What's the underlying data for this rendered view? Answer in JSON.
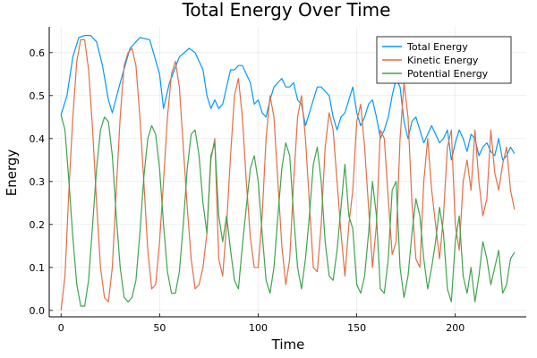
{
  "chart_data": {
    "type": "line",
    "title": "Total Energy Over Time",
    "xlabel": "Time",
    "ylabel": "Energy",
    "xlim": [
      -6,
      236
    ],
    "ylim": [
      -0.015,
      0.66
    ],
    "xticks": [
      0,
      50,
      100,
      150,
      200
    ],
    "yticks": [
      0.0,
      0.1,
      0.2,
      0.3,
      0.4,
      0.5,
      0.6
    ],
    "grid": true,
    "legend_position": "top-right",
    "series": [
      {
        "name": "Total Energy",
        "color": "#009AFA",
        "x": [
          0,
          3,
          6,
          9,
          12,
          15,
          18,
          21,
          24,
          26,
          30,
          35,
          40,
          45,
          50,
          52,
          55,
          60,
          65,
          68,
          70,
          72,
          74,
          76,
          78,
          80,
          82,
          84,
          86,
          88,
          90,
          92,
          94,
          96,
          98,
          100,
          102,
          104,
          106,
          108,
          110,
          112,
          114,
          116,
          118,
          120,
          122,
          124,
          126,
          128,
          130,
          132,
          134,
          136,
          138,
          140,
          142,
          144,
          146,
          148,
          150,
          152,
          154,
          156,
          158,
          160,
          162,
          164,
          166,
          168,
          170,
          172,
          174,
          176,
          178,
          180,
          182,
          184,
          186,
          188,
          190,
          192,
          194,
          196,
          198,
          200,
          202,
          204,
          206,
          208,
          210,
          212,
          214,
          216,
          218,
          220,
          222,
          224,
          226,
          228,
          230
        ],
        "values": [
          0.455,
          0.5,
          0.59,
          0.635,
          0.64,
          0.64,
          0.625,
          0.57,
          0.49,
          0.46,
          0.53,
          0.61,
          0.635,
          0.63,
          0.55,
          0.47,
          0.53,
          0.59,
          0.61,
          0.6,
          0.58,
          0.56,
          0.5,
          0.47,
          0.49,
          0.47,
          0.48,
          0.52,
          0.56,
          0.56,
          0.57,
          0.57,
          0.55,
          0.53,
          0.48,
          0.49,
          0.46,
          0.45,
          0.49,
          0.52,
          0.53,
          0.54,
          0.52,
          0.52,
          0.53,
          0.49,
          0.48,
          0.43,
          0.46,
          0.49,
          0.52,
          0.52,
          0.51,
          0.5,
          0.45,
          0.42,
          0.45,
          0.46,
          0.49,
          0.52,
          0.46,
          0.43,
          0.45,
          0.48,
          0.49,
          0.45,
          0.4,
          0.42,
          0.45,
          0.5,
          0.54,
          0.52,
          0.44,
          0.4,
          0.44,
          0.45,
          0.42,
          0.39,
          0.41,
          0.43,
          0.41,
          0.39,
          0.4,
          0.42,
          0.35,
          0.39,
          0.42,
          0.4,
          0.37,
          0.41,
          0.4,
          0.36,
          0.38,
          0.39,
          0.37,
          0.36,
          0.4,
          0.35,
          0.36,
          0.38,
          0.365
        ]
      },
      {
        "name": "Kinetic Energy",
        "color": "#E26F46",
        "x": [
          0,
          2,
          4,
          6,
          8,
          10,
          12,
          14,
          16,
          18,
          20,
          22,
          24,
          26,
          28,
          30,
          32,
          34,
          36,
          38,
          40,
          42,
          44,
          46,
          48,
          50,
          52,
          54,
          56,
          58,
          60,
          62,
          64,
          66,
          68,
          70,
          72,
          74,
          76,
          78,
          80,
          82,
          84,
          86,
          88,
          90,
          92,
          94,
          96,
          98,
          100,
          102,
          104,
          106,
          108,
          110,
          112,
          114,
          116,
          118,
          120,
          122,
          124,
          126,
          128,
          130,
          132,
          134,
          136,
          138,
          140,
          142,
          144,
          146,
          148,
          150,
          152,
          154,
          156,
          158,
          160,
          162,
          164,
          166,
          168,
          170,
          172,
          174,
          176,
          178,
          180,
          182,
          184,
          186,
          188,
          190,
          192,
          194,
          196,
          198,
          200,
          202,
          204,
          206,
          208,
          210,
          212,
          214,
          216,
          218,
          220,
          222,
          224,
          226,
          228,
          230
        ],
        "values": [
          0.0,
          0.08,
          0.28,
          0.45,
          0.58,
          0.63,
          0.63,
          0.56,
          0.42,
          0.25,
          0.1,
          0.03,
          0.02,
          0.1,
          0.28,
          0.45,
          0.57,
          0.6,
          0.61,
          0.57,
          0.45,
          0.3,
          0.14,
          0.05,
          0.06,
          0.16,
          0.3,
          0.45,
          0.55,
          0.58,
          0.52,
          0.38,
          0.24,
          0.12,
          0.05,
          0.06,
          0.1,
          0.18,
          0.35,
          0.4,
          0.12,
          0.08,
          0.2,
          0.36,
          0.5,
          0.54,
          0.45,
          0.3,
          0.17,
          0.1,
          0.1,
          0.22,
          0.4,
          0.5,
          0.45,
          0.3,
          0.15,
          0.06,
          0.12,
          0.3,
          0.45,
          0.5,
          0.4,
          0.25,
          0.1,
          0.09,
          0.2,
          0.38,
          0.46,
          0.42,
          0.3,
          0.18,
          0.08,
          0.2,
          0.28,
          0.44,
          0.48,
          0.38,
          0.24,
          0.1,
          0.2,
          0.42,
          0.4,
          0.26,
          0.13,
          0.16,
          0.4,
          0.53,
          0.45,
          0.25,
          0.12,
          0.1,
          0.3,
          0.4,
          0.28,
          0.2,
          0.12,
          0.22,
          0.38,
          0.42,
          0.2,
          0.14,
          0.3,
          0.35,
          0.28,
          0.42,
          0.3,
          0.22,
          0.26,
          0.42,
          0.32,
          0.28,
          0.34,
          0.38,
          0.28,
          0.235
        ]
      },
      {
        "name": "Potential Energy",
        "color": "#3EA44E",
        "x": [
          0,
          2,
          4,
          6,
          8,
          10,
          12,
          14,
          16,
          18,
          20,
          22,
          24,
          26,
          28,
          30,
          32,
          34,
          36,
          38,
          40,
          42,
          44,
          46,
          48,
          50,
          52,
          54,
          56,
          58,
          60,
          62,
          64,
          66,
          68,
          70,
          72,
          74,
          76,
          78,
          80,
          82,
          84,
          86,
          88,
          90,
          92,
          94,
          96,
          98,
          100,
          102,
          104,
          106,
          108,
          110,
          112,
          114,
          116,
          118,
          120,
          122,
          124,
          126,
          128,
          130,
          132,
          134,
          136,
          138,
          140,
          142,
          144,
          146,
          148,
          150,
          152,
          154,
          156,
          158,
          160,
          162,
          164,
          166,
          168,
          170,
          172,
          174,
          176,
          178,
          180,
          182,
          184,
          186,
          188,
          190,
          192,
          194,
          196,
          198,
          200,
          202,
          204,
          206,
          208,
          210,
          212,
          214,
          216,
          218,
          220,
          222,
          224,
          226,
          228,
          230
        ],
        "values": [
          0.455,
          0.42,
          0.3,
          0.17,
          0.06,
          0.01,
          0.01,
          0.07,
          0.2,
          0.33,
          0.42,
          0.45,
          0.44,
          0.36,
          0.22,
          0.1,
          0.03,
          0.02,
          0.03,
          0.07,
          0.18,
          0.31,
          0.4,
          0.43,
          0.41,
          0.33,
          0.2,
          0.09,
          0.04,
          0.04,
          0.09,
          0.2,
          0.33,
          0.41,
          0.42,
          0.36,
          0.25,
          0.18,
          0.36,
          0.39,
          0.22,
          0.16,
          0.22,
          0.14,
          0.07,
          0.05,
          0.15,
          0.24,
          0.33,
          0.36,
          0.3,
          0.18,
          0.07,
          0.04,
          0.1,
          0.22,
          0.33,
          0.39,
          0.36,
          0.22,
          0.1,
          0.05,
          0.12,
          0.22,
          0.34,
          0.38,
          0.3,
          0.16,
          0.08,
          0.07,
          0.14,
          0.24,
          0.34,
          0.22,
          0.19,
          0.06,
          0.04,
          0.08,
          0.18,
          0.3,
          0.22,
          0.05,
          0.04,
          0.12,
          0.28,
          0.3,
          0.1,
          0.03,
          0.08,
          0.18,
          0.26,
          0.22,
          0.12,
          0.05,
          0.1,
          0.16,
          0.24,
          0.18,
          0.05,
          0.02,
          0.16,
          0.22,
          0.08,
          0.04,
          0.1,
          0.02,
          0.08,
          0.16,
          0.12,
          0.06,
          0.1,
          0.14,
          0.04,
          0.06,
          0.12,
          0.135
        ]
      }
    ]
  }
}
